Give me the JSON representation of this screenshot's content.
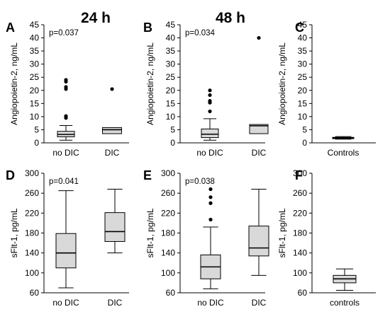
{
  "column_titles": [
    "24 h",
    "48 h"
  ],
  "chart_data": [
    {
      "type": "box",
      "panel": "A",
      "ylabel": "Angiopoietin-2, ng/mL",
      "ylim": [
        0,
        45
      ],
      "yticks": [
        0,
        5,
        10,
        15,
        20,
        25,
        30,
        35,
        40,
        45
      ],
      "pvalue": "p=0.037",
      "categories": [
        "no DIC",
        "DIC"
      ],
      "boxes": [
        {
          "category": "no DIC",
          "min": 1.0,
          "q1": 2.3,
          "median": 3.2,
          "q3": 4.4,
          "max": 6.6,
          "outliers": [
            9.5,
            10.2,
            20.5,
            21.3,
            23.3,
            24.0
          ]
        },
        {
          "category": "DIC",
          "min": 3.5,
          "q1": 3.5,
          "median": 5.0,
          "q3": 5.8,
          "max": 5.8,
          "outliers": [
            20.5
          ]
        }
      ]
    },
    {
      "type": "box",
      "panel": "B",
      "ylabel": "Angiopoietin-2, ng/mL",
      "ylim": [
        0,
        45
      ],
      "yticks": [
        0,
        5,
        10,
        15,
        20,
        25,
        30,
        35,
        40,
        45
      ],
      "pvalue": "p=0.034",
      "categories": [
        "no DIC",
        "DIC"
      ],
      "boxes": [
        {
          "category": "no DIC",
          "min": 1.0,
          "q1": 2.0,
          "median": 3.3,
          "q3": 5.3,
          "max": 9.2,
          "outliers": [
            12.0,
            15.3,
            16.0,
            18.2,
            20.0
          ]
        },
        {
          "category": "DIC",
          "min": 3.5,
          "q1": 3.5,
          "median": 6.5,
          "q3": 7.0,
          "max": 7.0,
          "outliers": [
            40.0
          ]
        }
      ]
    },
    {
      "type": "box",
      "panel": "C",
      "ylabel": "Angiopoietin-2, ng/mL",
      "ylim": [
        0,
        45
      ],
      "yticks": [
        0,
        5,
        10,
        15,
        20,
        25,
        30,
        35,
        40,
        45
      ],
      "pvalue": "",
      "categories": [
        "Controls"
      ],
      "boxes": [
        {
          "category": "Controls",
          "min": 1.4,
          "q1": 1.6,
          "median": 1.8,
          "q3": 2.1,
          "max": 2.4,
          "outliers": []
        }
      ]
    },
    {
      "type": "box",
      "panel": "D",
      "ylabel": "sFlt-1, pg/mL",
      "ylim": [
        60,
        300
      ],
      "yticks": [
        60,
        100,
        140,
        180,
        220,
        260,
        300
      ],
      "pvalue": "p=0.041",
      "categories": [
        "no DIC",
        "DIC"
      ],
      "boxes": [
        {
          "category": "no DIC",
          "min": 70,
          "q1": 110,
          "median": 140,
          "q3": 179,
          "max": 265,
          "outliers": []
        },
        {
          "category": "DIC",
          "min": 140,
          "q1": 163,
          "median": 183,
          "q3": 221,
          "max": 268,
          "outliers": []
        }
      ]
    },
    {
      "type": "box",
      "panel": "E",
      "ylabel": "sFlt-1, pg/mL",
      "ylim": [
        60,
        300
      ],
      "yticks": [
        60,
        100,
        140,
        180,
        220,
        260,
        300
      ],
      "pvalue": "p=0.038",
      "categories": [
        "no DIC",
        "DIC"
      ],
      "boxes": [
        {
          "category": "no DIC",
          "min": 68,
          "q1": 88,
          "median": 112,
          "q3": 136,
          "max": 192,
          "outliers": [
            207,
            240,
            252,
            268
          ]
        },
        {
          "category": "DIC",
          "min": 95,
          "q1": 134,
          "median": 150,
          "q3": 194,
          "max": 268,
          "outliers": []
        }
      ]
    },
    {
      "type": "box",
      "panel": "F",
      "ylabel": "sFlt-1, pg/mL",
      "ylim": [
        60,
        300
      ],
      "yticks": [
        60,
        100,
        140,
        180,
        220,
        260,
        300
      ],
      "pvalue": "",
      "categories": [
        "controls"
      ],
      "boxes": [
        {
          "category": "controls",
          "min": 65,
          "q1": 80,
          "median": 88,
          "q3": 95,
          "max": 108,
          "outliers": []
        }
      ]
    }
  ]
}
